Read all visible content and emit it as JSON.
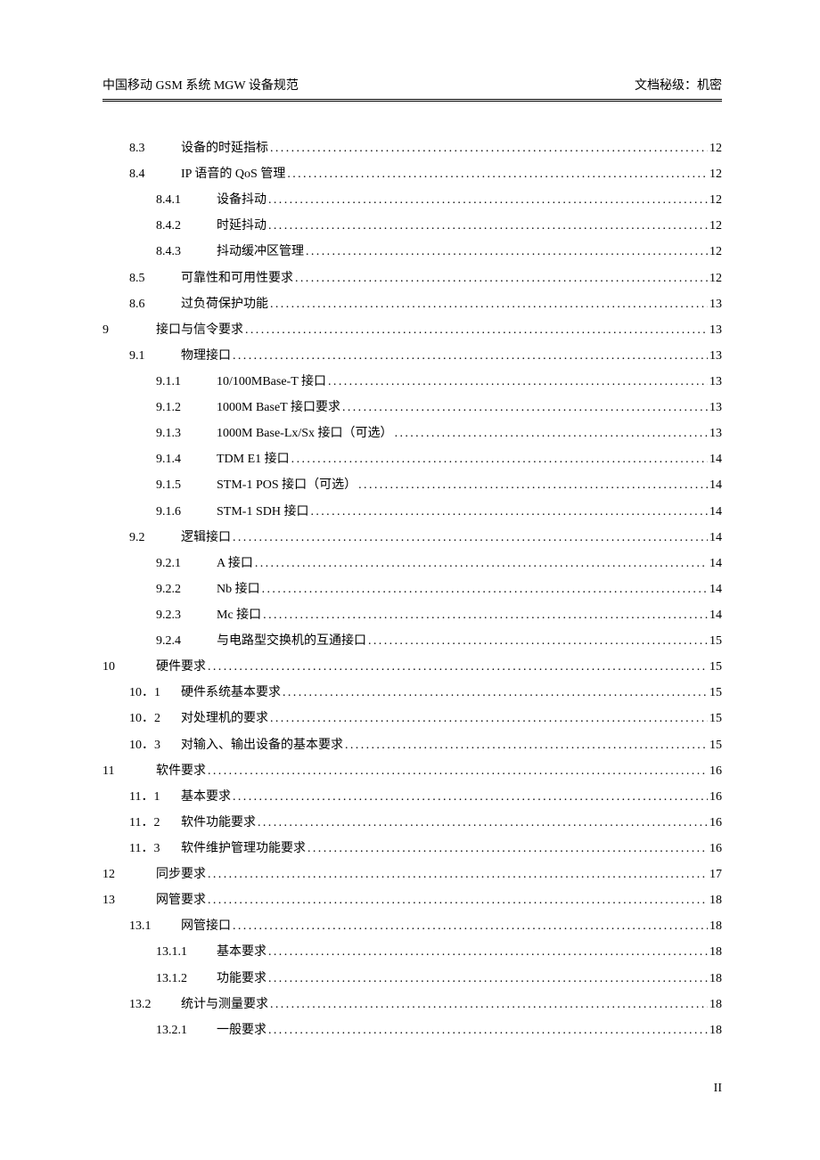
{
  "header": {
    "left": "中国移动 GSM 系统 MGW 设备规范",
    "right": "文档秘级：机密"
  },
  "footer": {
    "page_number": "II"
  },
  "toc": [
    {
      "level": 1,
      "num": "8.3",
      "title": "设备的时延指标",
      "page": "12"
    },
    {
      "level": 1,
      "num": "8.4",
      "title": "IP 语音的 QoS 管理",
      "page": "12"
    },
    {
      "level": 2,
      "num": "8.4.1",
      "title": "设备抖动",
      "page": "12"
    },
    {
      "level": 2,
      "num": "8.4.2",
      "title": "时延抖动",
      "page": "12"
    },
    {
      "level": 2,
      "num": "8.4.3",
      "title": "抖动缓冲区管理",
      "page": "12"
    },
    {
      "level": 1,
      "num": "8.5",
      "title": "可靠性和可用性要求",
      "page": "12"
    },
    {
      "level": 1,
      "num": "8.6",
      "title": "过负荷保护功能",
      "page": "13"
    },
    {
      "level": 0,
      "num": "9",
      "title": "接口与信令要求",
      "page": "13"
    },
    {
      "level": 1,
      "num": "9.1",
      "title": "物理接口",
      "page": "13"
    },
    {
      "level": 2,
      "num": "9.1.1",
      "title": "10/100MBase-T 接口",
      "page": "13"
    },
    {
      "level": 2,
      "num": "9.1.2",
      "title": "1000M BaseT 接口要求",
      "page": "13"
    },
    {
      "level": 2,
      "num": "9.1.3",
      "title": "1000M Base-Lx/Sx 接口（可选）",
      "page": "13"
    },
    {
      "level": 2,
      "num": "9.1.4",
      "title": "TDM E1 接口",
      "page": "14"
    },
    {
      "level": 2,
      "num": "9.1.5",
      "title": "STM-1 POS 接口（可选）",
      "page": "14"
    },
    {
      "level": 2,
      "num": "9.1.6",
      "title": "STM-1 SDH 接口",
      "page": "14"
    },
    {
      "level": 1,
      "num": "9.2",
      "title": "逻辑接口",
      "page": "14"
    },
    {
      "level": 2,
      "num": "9.2.1",
      "title": "A  接口",
      "page": "14"
    },
    {
      "level": 2,
      "num": "9.2.2",
      "title": "Nb 接口",
      "page": "14"
    },
    {
      "level": 2,
      "num": "9.2.3",
      "title": "Mc 接口",
      "page": "14"
    },
    {
      "level": 2,
      "num": "9.2.4",
      "title": "与电路型交换机的互通接口",
      "page": "15"
    },
    {
      "level": 0,
      "num": "10",
      "title": "硬件要求",
      "page": "15"
    },
    {
      "level": 1,
      "num": "10．1",
      "title": "硬件系统基本要求",
      "page": "15"
    },
    {
      "level": 1,
      "num": "10．2",
      "title": "对处理机的要求",
      "page": "15"
    },
    {
      "level": 1,
      "num": "10．3",
      "title": "对输入、输出设备的基本要求",
      "page": "15"
    },
    {
      "level": 0,
      "num": "11",
      "title": "软件要求",
      "page": "16"
    },
    {
      "level": 1,
      "num": "11．1",
      "title": "基本要求",
      "page": "16"
    },
    {
      "level": 1,
      "num": "11．2",
      "title": "软件功能要求",
      "page": "16"
    },
    {
      "level": 1,
      "num": "11．3",
      "title": "软件维护管理功能要求",
      "page": "16"
    },
    {
      "level": 0,
      "num": "12",
      "title": "同步要求",
      "page": "17"
    },
    {
      "level": 0,
      "num": "13",
      "title": "网管要求",
      "page": "18"
    },
    {
      "level": 1,
      "num": "13.1",
      "title": "网管接口",
      "page": "18"
    },
    {
      "level": 2,
      "num": "13.1.1",
      "title": "基本要求",
      "page": "18"
    },
    {
      "level": 2,
      "num": "13.1.2",
      "title": "功能要求",
      "page": "18"
    },
    {
      "level": 1,
      "num": "13.2",
      "title": "统计与测量要求",
      "page": "18"
    },
    {
      "level": 2,
      "num": "13.2.1",
      "title": "一般要求",
      "page": "18"
    }
  ]
}
